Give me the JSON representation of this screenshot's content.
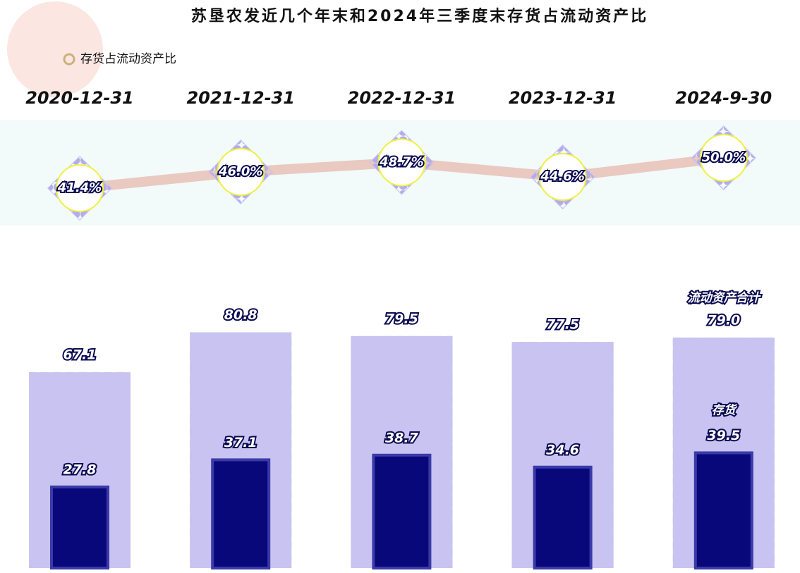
{
  "chart_data": [
    {
      "type": "line",
      "title": "苏垦农发近几个年末和2024年三季度末存货占流动资产比",
      "categories": [
        "2020-12-31",
        "2021-12-31",
        "2022-12-31",
        "2023-12-31",
        "2024-9-30"
      ],
      "series": [
        {
          "name": "存货占流动资产比",
          "color": "#e6b4a6",
          "values": [
            41.4,
            46.0,
            48.7,
            44.6,
            50.0
          ],
          "value_labels": [
            "41.4%",
            "46.0%",
            "48.7%",
            "44.6%",
            "50.0%"
          ]
        }
      ],
      "legend": "top-left"
    },
    {
      "type": "bar",
      "series": [
        {
          "name": "流动资产合计",
          "color": "#c8c3f0",
          "values": [
            67.1,
            80.8,
            79.5,
            77.5,
            79.0
          ],
          "value_labels": [
            "67.1",
            "80.8",
            "79.5",
            "77.5",
            "79.0"
          ]
        },
        {
          "name": "存货",
          "color": "#08087a",
          "values": [
            27.8,
            37.1,
            38.7,
            34.6,
            39.5
          ]
        }
      ]
    }
  ]
}
